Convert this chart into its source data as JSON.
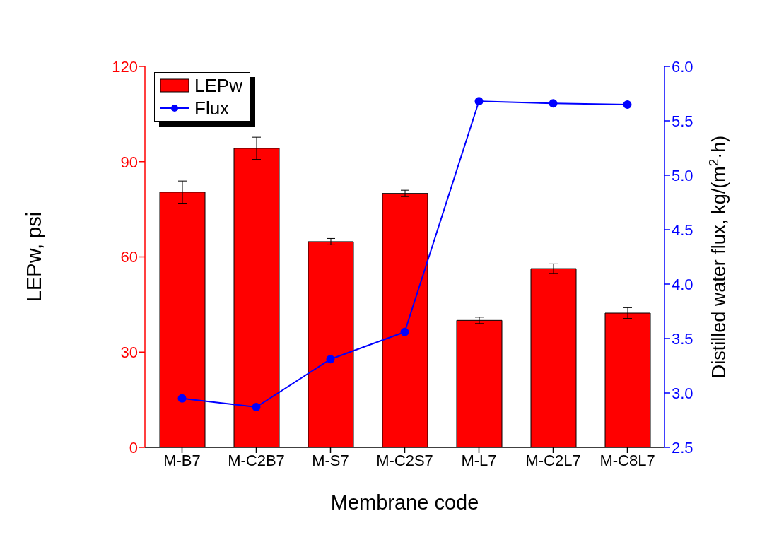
{
  "chart_data": {
    "type": "bar",
    "xlabel": "Membrane code",
    "ylabel": "LEPw, psi",
    "y2label": "Distilled water flux, kg/(m$^{2}$·h)",
    "categories": [
      "M-B7",
      "M-C2B7",
      "M-S7",
      "M-C2S7",
      "M-L7",
      "M-C2L7",
      "M-C8L7"
    ],
    "series": [
      {
        "name": "LEPw",
        "color": "#ff0000",
        "values": [
          80.4,
          94.2,
          64.8,
          80.0,
          40.0,
          56.3,
          42.3
        ],
        "errors": [
          3.5,
          3.5,
          1.0,
          1.0,
          1.0,
          1.5,
          1.7
        ]
      },
      {
        "name": "Flux",
        "type": "line",
        "axis": "y2",
        "color": "#0000ff",
        "marker": "circle",
        "values": [
          2.95,
          2.87,
          3.31,
          3.56,
          5.68,
          5.66,
          5.65
        ]
      }
    ],
    "ylim": [
      0,
      120
    ],
    "yticks": [
      0,
      30,
      60,
      90,
      120
    ],
    "y2lim": [
      2.5,
      6.0
    ],
    "y2ticks": [
      {
        "value": 2.5,
        "label": "2.5"
      },
      {
        "value": 3.0,
        "label": "3.0"
      },
      {
        "value": 3.5,
        "label": "3.5"
      },
      {
        "value": 4.0,
        "label": "4.0"
      },
      {
        "value": 4.5,
        "label": "4.5"
      },
      {
        "value": 5.0,
        "label": "5.0"
      },
      {
        "value": 5.5,
        "label": "5.5"
      },
      {
        "value": 6.0,
        "label": "6.0"
      }
    ],
    "grid": false,
    "legend": "top left"
  }
}
